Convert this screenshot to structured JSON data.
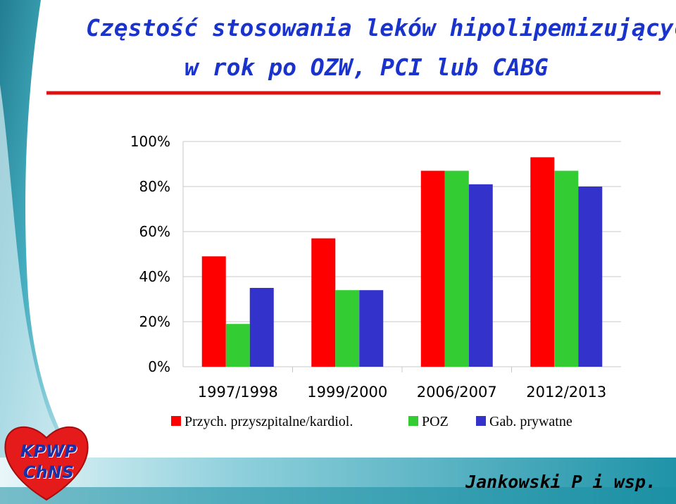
{
  "slide": {
    "title_line1": "Częstość stosowania leków hipolipemizujących",
    "title_line2": "w rok po OZW, PCI lub CABG",
    "author": "Jankowski P i wsp.",
    "logo_line1": "KPWP",
    "logo_line2": "ChNS"
  },
  "colors": {
    "title": "#1a33cc",
    "rule": "#dd1111",
    "series": [
      "#ff0000",
      "#33cc33",
      "#3333cc"
    ]
  },
  "chart_data": {
    "type": "bar",
    "title": "",
    "xlabel": "",
    "ylabel": "",
    "categories": [
      "1997/1998",
      "1999/2000",
      "2006/2007",
      "2012/2013"
    ],
    "series": [
      {
        "name": "Przych. przyszpitalne/kardiol.",
        "values": [
          49,
          57,
          87,
          93
        ]
      },
      {
        "name": "POZ",
        "values": [
          19,
          34,
          87,
          87
        ]
      },
      {
        "name": "Gab. prywatne",
        "values": [
          35,
          34,
          81,
          80
        ]
      }
    ],
    "ylim": [
      0,
      100
    ],
    "yticks": [
      "0%",
      "20%",
      "40%",
      "60%",
      "80%",
      "100%"
    ],
    "grid": true,
    "legend": "bottom"
  }
}
